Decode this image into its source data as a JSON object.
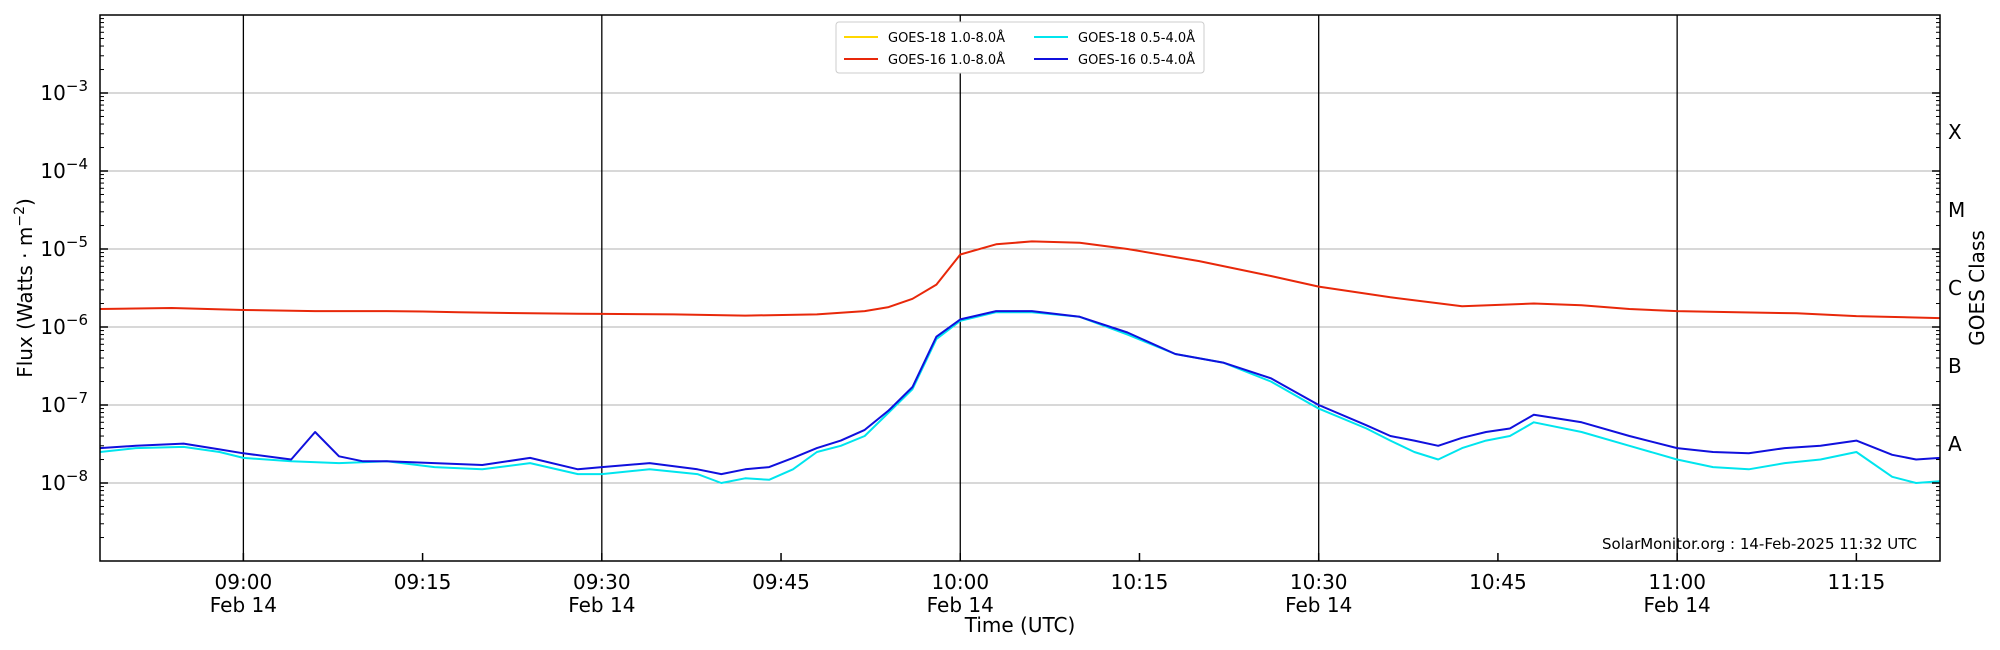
{
  "chart_data": {
    "type": "line",
    "title": "",
    "xlabel": "Time (UTC)",
    "ylabel": "Flux (Watts · m",
    "ylabel_sup": "−2",
    "ylabel_end": ")",
    "right_label": "GOES Class",
    "y_scale": "log",
    "ylim": [
      1e-09,
      0.01
    ],
    "xlim_minutes": [
      -24,
      284
    ],
    "x_ticks": [
      {
        "t": 0,
        "time": "09:00",
        "date": "Feb 14",
        "major": true
      },
      {
        "t": 30,
        "time": "09:15",
        "date": "",
        "major": false
      },
      {
        "t": 60,
        "time": "09:30",
        "date": "Feb 14",
        "major": true
      },
      {
        "t": 90,
        "time": "09:45",
        "date": "",
        "major": false
      },
      {
        "t": 120,
        "time": "10:00",
        "date": "Feb 14",
        "major": true
      },
      {
        "t": 150,
        "time": "10:15",
        "date": "",
        "major": false
      },
      {
        "t": 180,
        "time": "10:30",
        "date": "Feb 14",
        "major": true
      },
      {
        "t": 210,
        "time": "10:45",
        "date": "",
        "major": false
      },
      {
        "t": 240,
        "time": "11:00",
        "date": "Feb 14",
        "major": true
      },
      {
        "t": 270,
        "time": "11:15",
        "date": "",
        "major": false
      }
    ],
    "y_ticks": [
      {
        "exp": -8,
        "base": "10",
        "sup": "−8"
      },
      {
        "exp": -7,
        "base": "10",
        "sup": "−7"
      },
      {
        "exp": -6,
        "base": "10",
        "sup": "−6"
      },
      {
        "exp": -5,
        "base": "10",
        "sup": "−5"
      },
      {
        "exp": -4,
        "base": "10",
        "sup": "−4"
      },
      {
        "exp": -3,
        "base": "10",
        "sup": "−3"
      }
    ],
    "goes_classes": [
      {
        "label": "A",
        "exp": -7.5
      },
      {
        "label": "B",
        "exp": -6.5
      },
      {
        "label": "C",
        "exp": -5.5
      },
      {
        "label": "M",
        "exp": -4.5
      },
      {
        "label": "X",
        "exp": -3.5
      }
    ],
    "grid": "horizontal",
    "legend": "top-center",
    "series": [
      {
        "name": "GOES-18 1.0-8.0Å",
        "color": "#ffd700",
        "x": [],
        "y": []
      },
      {
        "name": "GOES-16 1.0-8.0Å",
        "color": "#e8280a",
        "x": [
          -24,
          -12,
          0,
          12,
          24,
          30,
          36,
          48,
          56,
          60,
          72,
          84,
          96,
          104,
          108,
          112,
          116,
          120,
          126,
          132,
          140,
          148,
          160,
          172,
          180,
          192,
          204,
          216,
          224,
          232,
          240,
          250,
          260,
          270,
          284
        ],
        "y": [
          1.7e-06,
          1.75e-06,
          1.65e-06,
          1.6e-06,
          1.6e-06,
          1.58e-06,
          1.55e-06,
          1.5e-06,
          1.48e-06,
          1.47e-06,
          1.45e-06,
          1.4e-06,
          1.45e-06,
          1.6e-06,
          1.8e-06,
          2.3e-06,
          3.5e-06,
          8.5e-06,
          1.15e-05,
          1.25e-05,
          1.2e-05,
          1e-05,
          7e-06,
          4.5e-06,
          3.3e-06,
          2.4e-06,
          1.85e-06,
          2e-06,
          1.9e-06,
          1.7e-06,
          1.6e-06,
          1.55e-06,
          1.5e-06,
          1.38e-06,
          1.3e-06
        ]
      },
      {
        "name": "GOES-18 0.5-4.0Å",
        "color": "#00e5ee",
        "x": [
          -24,
          -18,
          -10,
          -4,
          0,
          8,
          16,
          24,
          32,
          40,
          48,
          56,
          60,
          68,
          76,
          80,
          84,
          88,
          92,
          96,
          100,
          104,
          108,
          112,
          116,
          120,
          126,
          132,
          140,
          148,
          156,
          164,
          172,
          180,
          188,
          192,
          196,
          200,
          204,
          208,
          212,
          216,
          224,
          232,
          240,
          246,
          252,
          258,
          264,
          270,
          276,
          280,
          284
        ],
        "y": [
          2.5e-08,
          2.8e-08,
          2.9e-08,
          2.5e-08,
          2.1e-08,
          1.9e-08,
          1.8e-08,
          1.9e-08,
          1.6e-08,
          1.5e-08,
          1.8e-08,
          1.3e-08,
          1.3e-08,
          1.5e-08,
          1.3e-08,
          1e-08,
          1.15e-08,
          1.1e-08,
          1.5e-08,
          2.5e-08,
          3e-08,
          4e-08,
          8e-08,
          1.6e-07,
          7e-07,
          1.2e-06,
          1.55e-06,
          1.55e-06,
          1.35e-06,
          8e-07,
          4.5e-07,
          3.5e-07,
          2e-07,
          9e-08,
          5e-08,
          3.5e-08,
          2.5e-08,
          2e-08,
          2.8e-08,
          3.5e-08,
          4e-08,
          6e-08,
          4.5e-08,
          3e-08,
          2e-08,
          1.6e-08,
          1.5e-08,
          1.8e-08,
          2e-08,
          2.5e-08,
          1.2e-08,
          1e-08,
          1.05e-08
        ]
      },
      {
        "name": "GOES-16 0.5-4.0Å",
        "color": "#1010dd",
        "x": [
          -24,
          -18,
          -10,
          -4,
          0,
          8,
          12,
          16,
          20,
          24,
          32,
          40,
          48,
          56,
          60,
          68,
          76,
          80,
          84,
          88,
          92,
          96,
          100,
          104,
          108,
          112,
          116,
          120,
          126,
          132,
          140,
          148,
          156,
          164,
          172,
          180,
          188,
          192,
          196,
          200,
          204,
          208,
          212,
          216,
          224,
          232,
          240,
          246,
          252,
          258,
          264,
          270,
          276,
          280,
          284
        ],
        "y": [
          2.8e-08,
          3e-08,
          3.2e-08,
          2.7e-08,
          2.4e-08,
          2e-08,
          4.5e-08,
          2.2e-08,
          1.9e-08,
          1.9e-08,
          1.8e-08,
          1.7e-08,
          2.1e-08,
          1.5e-08,
          1.6e-08,
          1.8e-08,
          1.5e-08,
          1.3e-08,
          1.5e-08,
          1.6e-08,
          2.1e-08,
          2.8e-08,
          3.5e-08,
          4.8e-08,
          8.5e-08,
          1.7e-07,
          7.5e-07,
          1.25e-06,
          1.6e-06,
          1.6e-06,
          1.35e-06,
          8.5e-07,
          4.5e-07,
          3.5e-07,
          2.2e-07,
          1e-07,
          5.5e-08,
          4e-08,
          3.5e-08,
          3e-08,
          3.8e-08,
          4.5e-08,
          5e-08,
          7.5e-08,
          6e-08,
          4e-08,
          2.8e-08,
          2.5e-08,
          2.4e-08,
          2.8e-08,
          3e-08,
          3.5e-08,
          2.3e-08,
          2e-08,
          2.1e-08
        ]
      }
    ],
    "annotation": "SolarMonitor.org : 14-Feb-2025 11:32 UTC"
  }
}
